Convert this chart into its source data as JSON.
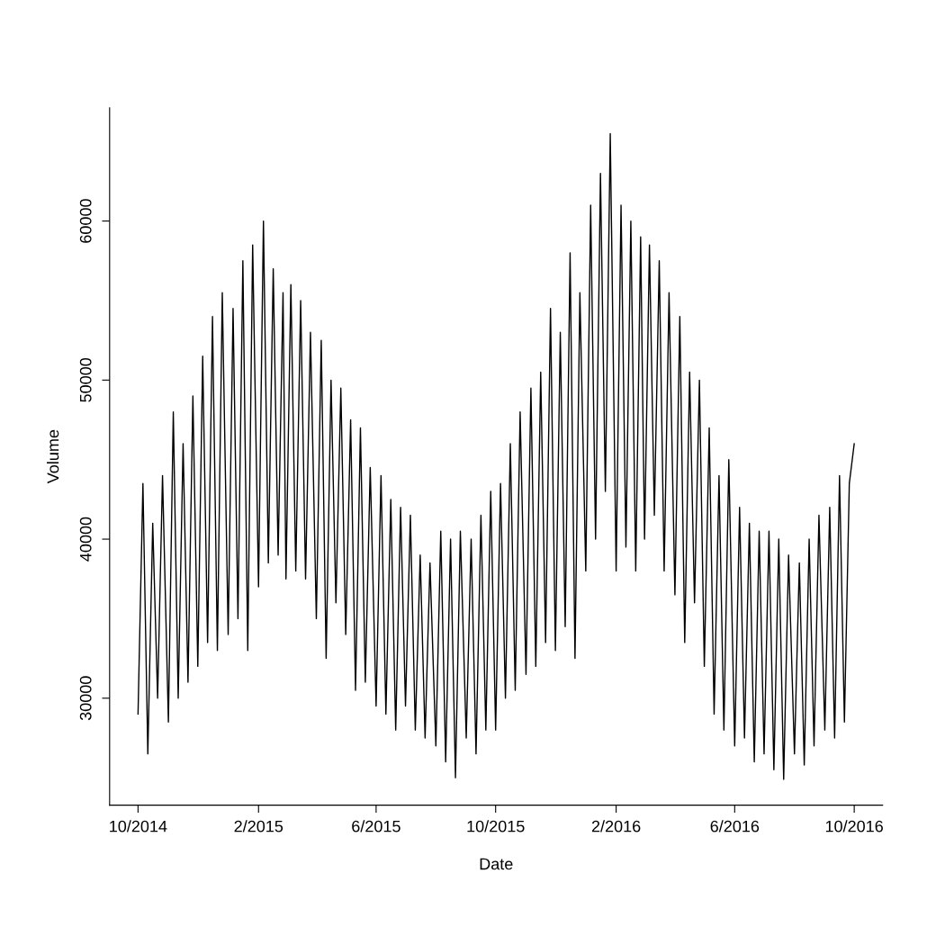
{
  "chart_data": {
    "type": "line",
    "xlabel": "Date",
    "ylabel": "Volume",
    "x": [
      "2014-10-01",
      "2014-10-06",
      "2014-10-11",
      "2014-10-16",
      "2014-10-21",
      "2014-10-26",
      "2014-11-01",
      "2014-11-06",
      "2014-11-11",
      "2014-11-16",
      "2014-11-21",
      "2014-11-26",
      "2014-12-01",
      "2014-12-06",
      "2014-12-11",
      "2014-12-16",
      "2014-12-21",
      "2014-12-26",
      "2015-01-01",
      "2015-01-06",
      "2015-01-11",
      "2015-01-16",
      "2015-01-21",
      "2015-01-26",
      "2015-02-01",
      "2015-02-06",
      "2015-02-11",
      "2015-02-16",
      "2015-02-21",
      "2015-02-26",
      "2015-03-01",
      "2015-03-06",
      "2015-03-11",
      "2015-03-16",
      "2015-03-21",
      "2015-03-26",
      "2015-04-01",
      "2015-04-06",
      "2015-04-11",
      "2015-04-16",
      "2015-04-21",
      "2015-04-26",
      "2015-05-01",
      "2015-05-06",
      "2015-05-11",
      "2015-05-16",
      "2015-05-21",
      "2015-05-26",
      "2015-06-01",
      "2015-06-06",
      "2015-06-11",
      "2015-06-16",
      "2015-06-21",
      "2015-06-26",
      "2015-07-01",
      "2015-07-06",
      "2015-07-11",
      "2015-07-16",
      "2015-07-21",
      "2015-07-26",
      "2015-08-01",
      "2015-08-06",
      "2015-08-11",
      "2015-08-16",
      "2015-08-21",
      "2015-08-26",
      "2015-09-01",
      "2015-09-06",
      "2015-09-11",
      "2015-09-16",
      "2015-09-21",
      "2015-09-26",
      "2015-10-01",
      "2015-10-06",
      "2015-10-11",
      "2015-10-16",
      "2015-10-21",
      "2015-10-26",
      "2015-11-01",
      "2015-11-06",
      "2015-11-11",
      "2015-11-16",
      "2015-11-21",
      "2015-11-26",
      "2015-12-01",
      "2015-12-06",
      "2015-12-11",
      "2015-12-16",
      "2015-12-21",
      "2015-12-26",
      "2016-01-01",
      "2016-01-06",
      "2016-01-11",
      "2016-01-16",
      "2016-01-21",
      "2016-01-26",
      "2016-02-01",
      "2016-02-06",
      "2016-02-11",
      "2016-02-16",
      "2016-02-21",
      "2016-02-26",
      "2016-03-01",
      "2016-03-06",
      "2016-03-11",
      "2016-03-16",
      "2016-03-21",
      "2016-03-26",
      "2016-04-01",
      "2016-04-06",
      "2016-04-11",
      "2016-04-16",
      "2016-04-21",
      "2016-04-26",
      "2016-05-01",
      "2016-05-06",
      "2016-05-11",
      "2016-05-16",
      "2016-05-21",
      "2016-05-26",
      "2016-06-01",
      "2016-06-06",
      "2016-06-11",
      "2016-06-16",
      "2016-06-21",
      "2016-06-26",
      "2016-07-01",
      "2016-07-06",
      "2016-07-11",
      "2016-07-16",
      "2016-07-21",
      "2016-07-26",
      "2016-08-01",
      "2016-08-06",
      "2016-08-11",
      "2016-08-16",
      "2016-08-21",
      "2016-08-26",
      "2016-09-01",
      "2016-09-06",
      "2016-09-11",
      "2016-09-16",
      "2016-09-21",
      "2016-09-26",
      "2016-10-01"
    ],
    "series": [
      {
        "color": "#000000",
        "values": [
          29000,
          43500,
          26500,
          41000,
          30000,
          44000,
          28500,
          48000,
          30000,
          46000,
          31000,
          49000,
          32000,
          51500,
          33500,
          54000,
          33000,
          55500,
          34000,
          54500,
          35000,
          57500,
          33000,
          58500,
          37000,
          60000,
          38500,
          57000,
          39000,
          55500,
          37500,
          56000,
          38000,
          55000,
          37500,
          53000,
          35000,
          52500,
          32500,
          50000,
          36000,
          49500,
          34000,
          47500,
          30500,
          47000,
          31000,
          44500,
          29500,
          44000,
          29000,
          42500,
          28000,
          42000,
          29500,
          41500,
          28000,
          39000,
          27500,
          38500,
          27000,
          40500,
          26000,
          40000,
          25000,
          40500,
          27500,
          40000,
          26500,
          41500,
          28000,
          43000,
          28000,
          43500,
          30000,
          46000,
          30500,
          48000,
          31500,
          49500,
          32000,
          50500,
          33500,
          54500,
          33000,
          53000,
          34500,
          58000,
          32500,
          55500,
          38000,
          61000,
          40000,
          63000,
          43000,
          65500,
          38000,
          61000,
          39500,
          60000,
          38000,
          59000,
          40000,
          58500,
          41500,
          57500,
          38000,
          55500,
          36500,
          54000,
          33500,
          50500,
          36000,
          50000,
          32000,
          47000,
          29000,
          44000,
          28000,
          45000,
          27000,
          42000,
          27500,
          41000,
          26000,
          40500,
          26500,
          40500,
          25500,
          40000,
          24900,
          39000,
          26500,
          38500,
          25800,
          40000,
          27000,
          41500,
          28000,
          42000,
          27500,
          44000,
          28500,
          43500,
          46000
        ]
      }
    ],
    "xlim": [
      "2014-09-02",
      "2016-10-30"
    ],
    "ylim": [
      23276,
      67124
    ],
    "xticks": [
      {
        "value": "2014-10-01",
        "label": "10/2014"
      },
      {
        "value": "2015-02-01",
        "label": "2/2015"
      },
      {
        "value": "2015-06-01",
        "label": "6/2015"
      },
      {
        "value": "2015-10-01",
        "label": "10/2015"
      },
      {
        "value": "2016-02-01",
        "label": "2/2016"
      },
      {
        "value": "2016-06-01",
        "label": "6/2016"
      },
      {
        "value": "2016-10-01",
        "label": "10/2016"
      }
    ],
    "yticks": [
      30000,
      40000,
      50000,
      60000
    ],
    "grid": false,
    "legend": false
  }
}
